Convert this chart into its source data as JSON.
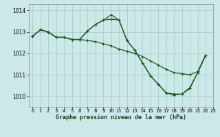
{
  "background_color": "#cce8e8",
  "grid_color": "#aacccc",
  "line_color": "#1a5c1a",
  "xlabel": "Graphe pression niveau de la mer (hPa)",
  "xlim": [
    -0.5,
    23
  ],
  "ylim": [
    1009.5,
    1014.3
  ],
  "yticks": [
    1010,
    1011,
    1012,
    1013,
    1014
  ],
  "xticks": [
    0,
    1,
    2,
    3,
    4,
    5,
    6,
    7,
    8,
    9,
    10,
    11,
    12,
    13,
    14,
    15,
    16,
    17,
    18,
    19,
    20,
    21,
    22,
    23
  ],
  "series1_x": [
    0,
    1,
    2,
    3,
    4,
    5,
    6,
    7,
    8,
    9,
    10,
    11,
    12,
    13,
    14,
    15,
    16,
    17,
    18,
    19,
    20,
    21,
    22
  ],
  "series1_y": [
    1012.8,
    1013.1,
    1013.0,
    1012.75,
    1012.75,
    1012.65,
    1012.65,
    1012.6,
    1012.55,
    1012.45,
    1012.35,
    1012.2,
    1012.1,
    1012.0,
    1011.85,
    1011.65,
    1011.45,
    1011.25,
    1011.1,
    1011.05,
    1011.0,
    1011.15,
    1011.9
  ],
  "series2_x": [
    0,
    1,
    2,
    3,
    4,
    5,
    6,
    7,
    8,
    9,
    10,
    11,
    12,
    13,
    14,
    15,
    16,
    17,
    18,
    19,
    20,
    21,
    22
  ],
  "series2_y": [
    1012.8,
    1013.1,
    1013.0,
    1012.75,
    1012.75,
    1012.65,
    1012.65,
    1013.05,
    1013.35,
    1013.55,
    1013.6,
    1013.55,
    1012.6,
    1012.15,
    1011.55,
    1010.95,
    1010.55,
    1010.15,
    1010.1,
    1010.1,
    1010.4,
    1011.1,
    1011.9
  ],
  "series3_x": [
    0,
    1,
    2,
    3,
    4,
    5,
    6,
    7,
    8,
    9,
    10,
    11,
    12,
    13,
    14,
    15,
    16,
    17,
    18,
    19,
    20,
    21,
    22
  ],
  "series3_y": [
    1012.8,
    1013.1,
    1013.0,
    1012.75,
    1012.75,
    1012.65,
    1012.65,
    1013.05,
    1013.35,
    1013.55,
    1013.8,
    1013.55,
    1012.6,
    1012.15,
    1011.55,
    1010.95,
    1010.55,
    1010.15,
    1010.05,
    1010.1,
    1010.35,
    1011.1,
    1011.9
  ]
}
